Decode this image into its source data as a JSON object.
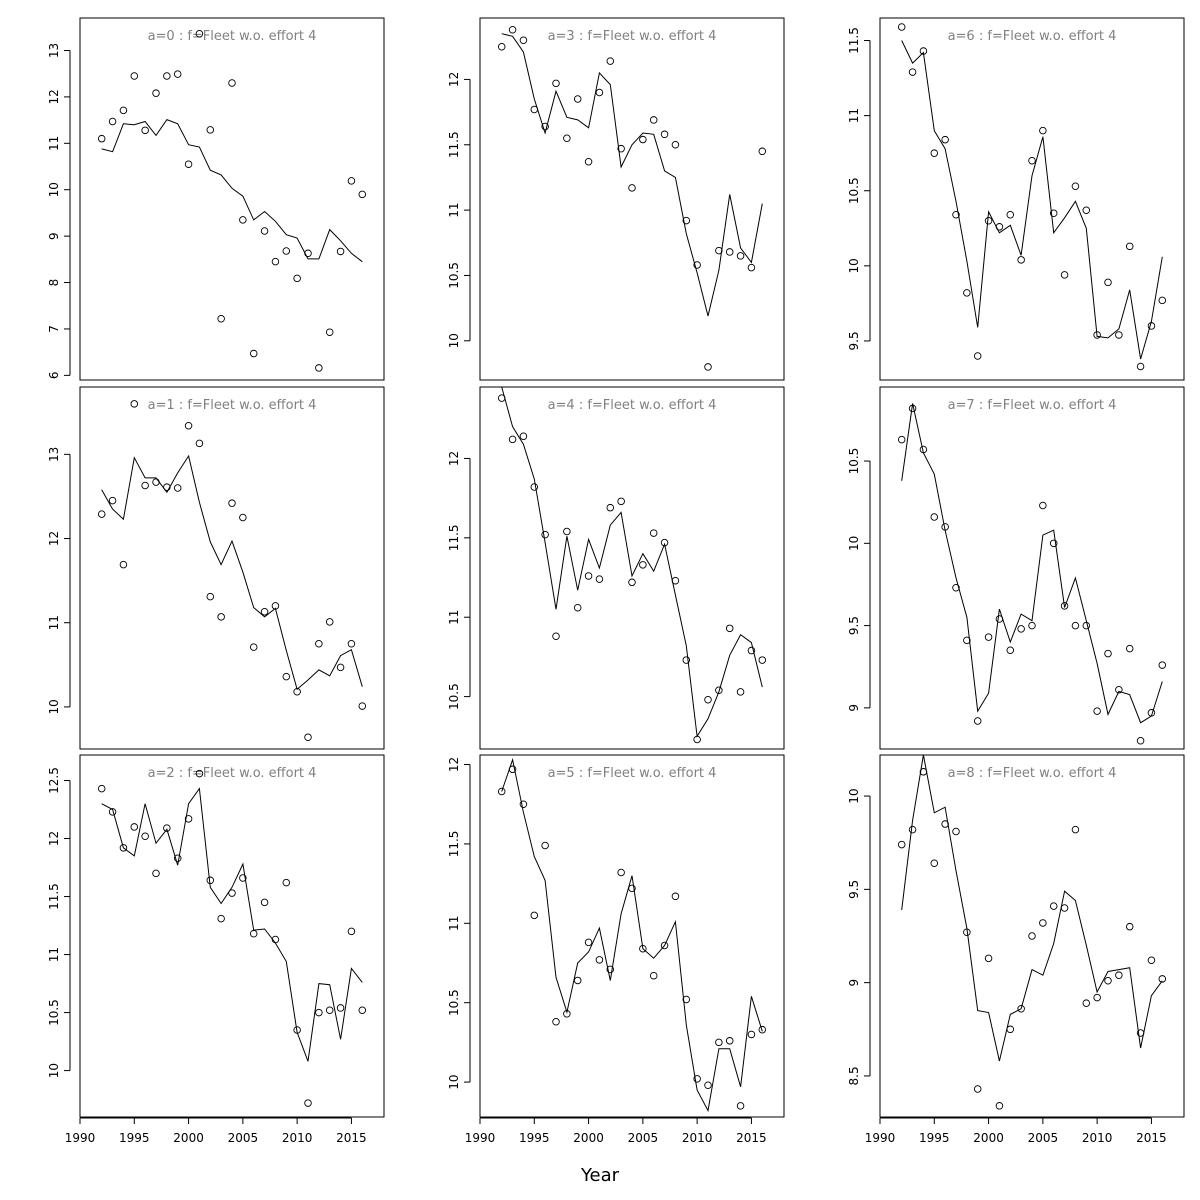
{
  "figure": {
    "xlabel": "Year"
  },
  "chart_data": [
    {
      "type": "scatter",
      "title": "a=0  :  f=Fleet w.o. effort 4",
      "xlim": [
        1990,
        2018
      ],
      "ylim": [
        5.9,
        13.7
      ],
      "xticks": [
        1990,
        1995,
        2000,
        2005,
        2010,
        2015
      ],
      "yticks": [
        6,
        7,
        8,
        9,
        10,
        11,
        12,
        13
      ],
      "x": [
        1992,
        1993,
        1994,
        1995,
        1996,
        1997,
        1998,
        1999,
        2000,
        2001,
        2002,
        2003,
        2004,
        2005,
        2006,
        2007,
        2008,
        2009,
        2010,
        2011,
        2012,
        2013,
        2014,
        2015,
        2016
      ],
      "observed": [
        11.1,
        11.47,
        11.71,
        12.45,
        11.28,
        12.08,
        12.45,
        12.49,
        10.55,
        13.36,
        11.29,
        7.22,
        12.3,
        9.35,
        6.47,
        9.11,
        8.45,
        8.68,
        8.09,
        8.63,
        6.16,
        6.93,
        8.67,
        10.19,
        9.9
      ],
      "fitted": [
        10.88,
        10.82,
        11.42,
        11.4,
        11.47,
        11.17,
        11.51,
        11.42,
        10.97,
        10.92,
        10.42,
        10.32,
        10.03,
        9.86,
        9.35,
        9.53,
        9.32,
        9.03,
        8.96,
        8.51,
        8.51,
        9.14,
        8.9,
        8.63,
        8.45
      ]
    },
    {
      "type": "scatter",
      "title": "a=1  :  f=Fleet w.o. effort 4",
      "xlim": [
        1990,
        2018
      ],
      "ylim": [
        9.5,
        13.8
      ],
      "xticks": [
        1990,
        1995,
        2000,
        2005,
        2010,
        2015
      ],
      "yticks": [
        10,
        11,
        12,
        13
      ],
      "x": [
        1992,
        1993,
        1994,
        1995,
        1996,
        1997,
        1998,
        1999,
        2000,
        2001,
        2002,
        2003,
        2004,
        2005,
        2006,
        2007,
        2008,
        2009,
        2010,
        2011,
        2012,
        2013,
        2014,
        2015,
        2016
      ],
      "observed": [
        12.29,
        12.45,
        11.69,
        13.6,
        12.63,
        12.67,
        12.61,
        12.6,
        13.34,
        13.13,
        11.31,
        11.07,
        12.42,
        12.25,
        10.71,
        11.13,
        11.2,
        10.36,
        10.18,
        9.64,
        10.75,
        11.01,
        10.47,
        10.75,
        10.01
      ],
      "fitted": [
        12.58,
        12.35,
        12.23,
        12.96,
        12.72,
        12.72,
        12.55,
        12.78,
        12.98,
        12.43,
        11.96,
        11.69,
        11.97,
        11.6,
        11.18,
        11.07,
        11.17,
        10.67,
        10.21,
        10.32,
        10.44,
        10.37,
        10.61,
        10.68,
        10.24
      ]
    },
    {
      "type": "scatter",
      "title": "a=2  :  f=Fleet w.o. effort 4",
      "xlim": [
        1990,
        2018
      ],
      "ylim": [
        9.6,
        12.72
      ],
      "xticks": [
        1990,
        1995,
        2000,
        2005,
        2010,
        2015
      ],
      "yticks": [
        10.0,
        10.5,
        11.0,
        11.5,
        12.0,
        12.5
      ],
      "x": [
        1992,
        1993,
        1994,
        1995,
        1996,
        1997,
        1998,
        1999,
        2000,
        2001,
        2002,
        2003,
        2004,
        2005,
        2006,
        2007,
        2008,
        2009,
        2010,
        2011,
        2012,
        2013,
        2014,
        2015,
        2016
      ],
      "observed": [
        12.43,
        12.23,
        11.92,
        12.1,
        12.02,
        11.7,
        12.09,
        11.83,
        12.17,
        12.56,
        11.64,
        11.31,
        11.53,
        11.66,
        11.18,
        11.45,
        11.13,
        11.62,
        10.35,
        9.72,
        10.5,
        10.52,
        10.54,
        11.2,
        10.52
      ],
      "fitted": [
        12.3,
        12.25,
        11.92,
        11.85,
        12.3,
        11.96,
        12.08,
        11.77,
        12.3,
        12.43,
        11.58,
        11.44,
        11.58,
        11.78,
        11.21,
        11.22,
        11.1,
        10.94,
        10.33,
        10.08,
        10.75,
        10.74,
        10.27,
        10.88,
        10.76
      ]
    },
    {
      "type": "scatter",
      "title": "a=3  :  f=Fleet w.o. effort 4",
      "xlim": [
        1990,
        2018
      ],
      "ylim": [
        9.7,
        12.47
      ],
      "xticks": [
        1990,
        1995,
        2000,
        2005,
        2010,
        2015
      ],
      "yticks": [
        10.0,
        10.5,
        11.0,
        11.5,
        12.0
      ],
      "x": [
        1992,
        1993,
        1994,
        1995,
        1996,
        1997,
        1998,
        1999,
        2000,
        2001,
        2002,
        2003,
        2004,
        2005,
        2006,
        2007,
        2008,
        2009,
        2010,
        2011,
        2012,
        2013,
        2014,
        2015,
        2016
      ],
      "observed": [
        12.25,
        12.38,
        12.3,
        11.77,
        11.64,
        11.97,
        11.55,
        11.85,
        11.37,
        11.9,
        12.14,
        11.47,
        11.17,
        11.54,
        11.69,
        11.58,
        11.5,
        10.92,
        10.58,
        9.8,
        10.69,
        10.68,
        10.65,
        10.56,
        11.45
      ],
      "fitted": [
        12.35,
        12.33,
        12.21,
        11.85,
        11.59,
        11.91,
        11.71,
        11.69,
        11.63,
        12.05,
        11.96,
        11.33,
        11.5,
        11.59,
        11.58,
        11.3,
        11.25,
        10.82,
        10.52,
        10.19,
        10.54,
        11.12,
        10.71,
        10.6,
        11.05
      ]
    },
    {
      "type": "scatter",
      "title": "a=4  :  f=Fleet w.o. effort 4",
      "xlim": [
        1990,
        2018
      ],
      "ylim": [
        10.17,
        12.45
      ],
      "xticks": [
        1990,
        1995,
        2000,
        2005,
        2010,
        2015
      ],
      "yticks": [
        10.5,
        11.0,
        11.5,
        12.0
      ],
      "x": [
        1992,
        1993,
        1994,
        1995,
        1996,
        1997,
        1998,
        1999,
        2000,
        2001,
        2002,
        2003,
        2004,
        2005,
        2006,
        2007,
        2008,
        2009,
        2010,
        2011,
        2012,
        2013,
        2014,
        2015,
        2016
      ],
      "observed": [
        12.38,
        12.12,
        12.14,
        11.82,
        11.52,
        10.88,
        11.54,
        11.06,
        11.26,
        11.24,
        11.69,
        11.73,
        11.22,
        11.33,
        11.53,
        11.47,
        11.23,
        10.73,
        10.23,
        10.48,
        10.54,
        10.93,
        10.53,
        10.79,
        10.73
      ],
      "fitted": [
        12.45,
        12.2,
        12.09,
        11.87,
        11.47,
        11.05,
        11.51,
        11.17,
        11.49,
        11.31,
        11.58,
        11.66,
        11.26,
        11.4,
        11.29,
        11.46,
        11.14,
        10.82,
        10.25,
        10.36,
        10.53,
        10.76,
        10.89,
        10.84,
        10.56
      ]
    },
    {
      "type": "scatter",
      "title": "a=5  :  f=Fleet w.o. effort 4",
      "xlim": [
        1990,
        2018
      ],
      "ylim": [
        9.78,
        12.06
      ],
      "xticks": [
        1990,
        1995,
        2000,
        2005,
        2010,
        2015
      ],
      "yticks": [
        10.0,
        10.5,
        11.0,
        11.5,
        12.0
      ],
      "x": [
        1992,
        1993,
        1994,
        1995,
        1996,
        1997,
        1998,
        1999,
        2000,
        2001,
        2002,
        2003,
        2004,
        2005,
        2006,
        2007,
        2008,
        2009,
        2010,
        2011,
        2012,
        2013,
        2014,
        2015,
        2016
      ],
      "observed": [
        11.83,
        11.97,
        11.75,
        11.05,
        11.49,
        10.38,
        10.43,
        10.64,
        10.88,
        10.77,
        10.71,
        11.32,
        11.22,
        10.84,
        10.67,
        10.86,
        11.17,
        10.52,
        10.02,
        9.98,
        10.25,
        10.26,
        9.85,
        10.3,
        10.33
      ],
      "fitted": [
        11.83,
        12.03,
        11.7,
        11.42,
        11.27,
        10.66,
        10.44,
        10.75,
        10.82,
        10.97,
        10.64,
        11.06,
        11.3,
        10.84,
        10.78,
        10.86,
        11.01,
        10.36,
        9.95,
        9.82,
        10.21,
        10.21,
        9.97,
        10.54,
        10.32
      ]
    },
    {
      "type": "scatter",
      "title": "a=6  :  f=Fleet w.o. effort 4",
      "xlim": [
        1990,
        2018
      ],
      "ylim": [
        9.24,
        11.65
      ],
      "xticks": [
        1990,
        1995,
        2000,
        2005,
        2010,
        2015
      ],
      "yticks": [
        9.5,
        10.0,
        10.5,
        11.0,
        11.5
      ],
      "x": [
        1992,
        1993,
        1994,
        1995,
        1996,
        1997,
        1998,
        1999,
        2000,
        2001,
        2002,
        2003,
        2004,
        2005,
        2006,
        2007,
        2008,
        2009,
        2010,
        2011,
        2012,
        2013,
        2014,
        2015,
        2016
      ],
      "observed": [
        11.59,
        11.29,
        11.43,
        10.75,
        10.84,
        10.34,
        9.82,
        9.4,
        10.3,
        10.26,
        10.34,
        10.04,
        10.7,
        10.9,
        10.35,
        9.94,
        10.53,
        10.37,
        9.54,
        9.89,
        9.54,
        10.13,
        9.33,
        9.6,
        9.77
      ],
      "fitted": [
        11.5,
        11.35,
        11.42,
        10.9,
        10.78,
        10.43,
        10.03,
        9.59,
        10.36,
        10.22,
        10.27,
        10.07,
        10.6,
        10.86,
        10.22,
        10.32,
        10.43,
        10.25,
        9.53,
        9.52,
        9.58,
        9.84,
        9.38,
        9.63,
        10.06
      ]
    },
    {
      "type": "scatter",
      "title": "a=7  :  f=Fleet w.o. effort 4",
      "xlim": [
        1990,
        2018
      ],
      "ylim": [
        8.75,
        10.95
      ],
      "xticks": [
        1990,
        1995,
        2000,
        2005,
        2010,
        2015
      ],
      "yticks": [
        9.0,
        9.5,
        10.0,
        10.5
      ],
      "x": [
        1992,
        1993,
        1994,
        1995,
        1996,
        1997,
        1998,
        1999,
        2000,
        2001,
        2002,
        2003,
        2004,
        2005,
        2006,
        2007,
        2008,
        2009,
        2010,
        2011,
        2012,
        2013,
        2014,
        2015,
        2016
      ],
      "observed": [
        10.63,
        10.82,
        10.57,
        10.16,
        10.1,
        9.73,
        9.41,
        8.92,
        9.43,
        9.54,
        9.35,
        9.48,
        9.5,
        10.23,
        10.0,
        9.62,
        9.5,
        9.5,
        8.98,
        9.33,
        9.11,
        9.36,
        8.8,
        8.97,
        9.26
      ],
      "fitted": [
        10.38,
        10.85,
        10.55,
        10.42,
        10.08,
        9.79,
        9.55,
        8.98,
        9.09,
        9.6,
        9.4,
        9.57,
        9.53,
        10.05,
        10.08,
        9.61,
        9.79,
        9.53,
        9.27,
        8.96,
        9.1,
        9.08,
        8.91,
        8.95,
        9.16
      ]
    },
    {
      "type": "scatter",
      "title": "a=8  :  f=Fleet w.o. effort 4",
      "xlim": [
        1990,
        2018
      ],
      "ylim": [
        8.28,
        10.22
      ],
      "xticks": [
        1990,
        1995,
        2000,
        2005,
        2010,
        2015
      ],
      "yticks": [
        8.5,
        9.0,
        9.5,
        10.0
      ],
      "x": [
        1992,
        1993,
        1994,
        1995,
        1996,
        1997,
        1998,
        1999,
        2000,
        2001,
        2002,
        2003,
        2004,
        2005,
        2006,
        2007,
        2008,
        2009,
        2010,
        2011,
        2012,
        2013,
        2014,
        2015,
        2016
      ],
      "observed": [
        9.74,
        9.82,
        10.13,
        9.64,
        9.85,
        9.81,
        9.27,
        8.43,
        9.13,
        8.34,
        8.75,
        8.86,
        9.25,
        9.32,
        9.41,
        9.4,
        9.82,
        8.89,
        8.92,
        9.01,
        9.04,
        9.3,
        8.73,
        9.12,
        9.02
      ],
      "fitted": [
        9.39,
        9.87,
        10.22,
        9.91,
        9.94,
        9.6,
        9.29,
        8.85,
        8.84,
        8.58,
        8.83,
        8.86,
        9.07,
        9.04,
        9.21,
        9.49,
        9.44,
        9.2,
        8.95,
        9.06,
        9.07,
        9.08,
        8.65,
        8.93,
        9.01
      ]
    }
  ]
}
